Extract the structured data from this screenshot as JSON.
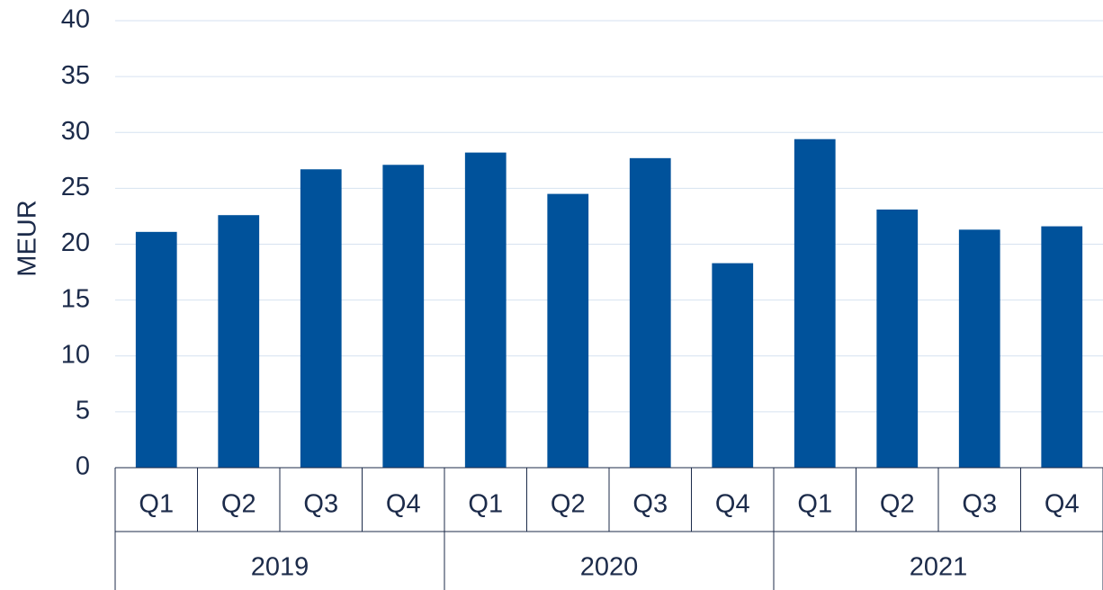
{
  "chart_data": {
    "type": "bar",
    "y_label": "MEUR",
    "categories": [
      "Q1",
      "Q2",
      "Q3",
      "Q4",
      "Q1",
      "Q2",
      "Q3",
      "Q4",
      "Q1",
      "Q2",
      "Q3",
      "Q4"
    ],
    "groups": [
      "2019",
      "2020",
      "2021"
    ],
    "values": [
      21.1,
      22.6,
      26.7,
      27.1,
      28.2,
      24.5,
      27.7,
      18.3,
      29.4,
      23.1,
      21.3,
      21.6
    ],
    "color": "#00529b",
    "ylim": [
      0,
      40
    ],
    "yticks": [
      0,
      5,
      10,
      15,
      20,
      25,
      30,
      35,
      40
    ],
    "grid": true
  }
}
